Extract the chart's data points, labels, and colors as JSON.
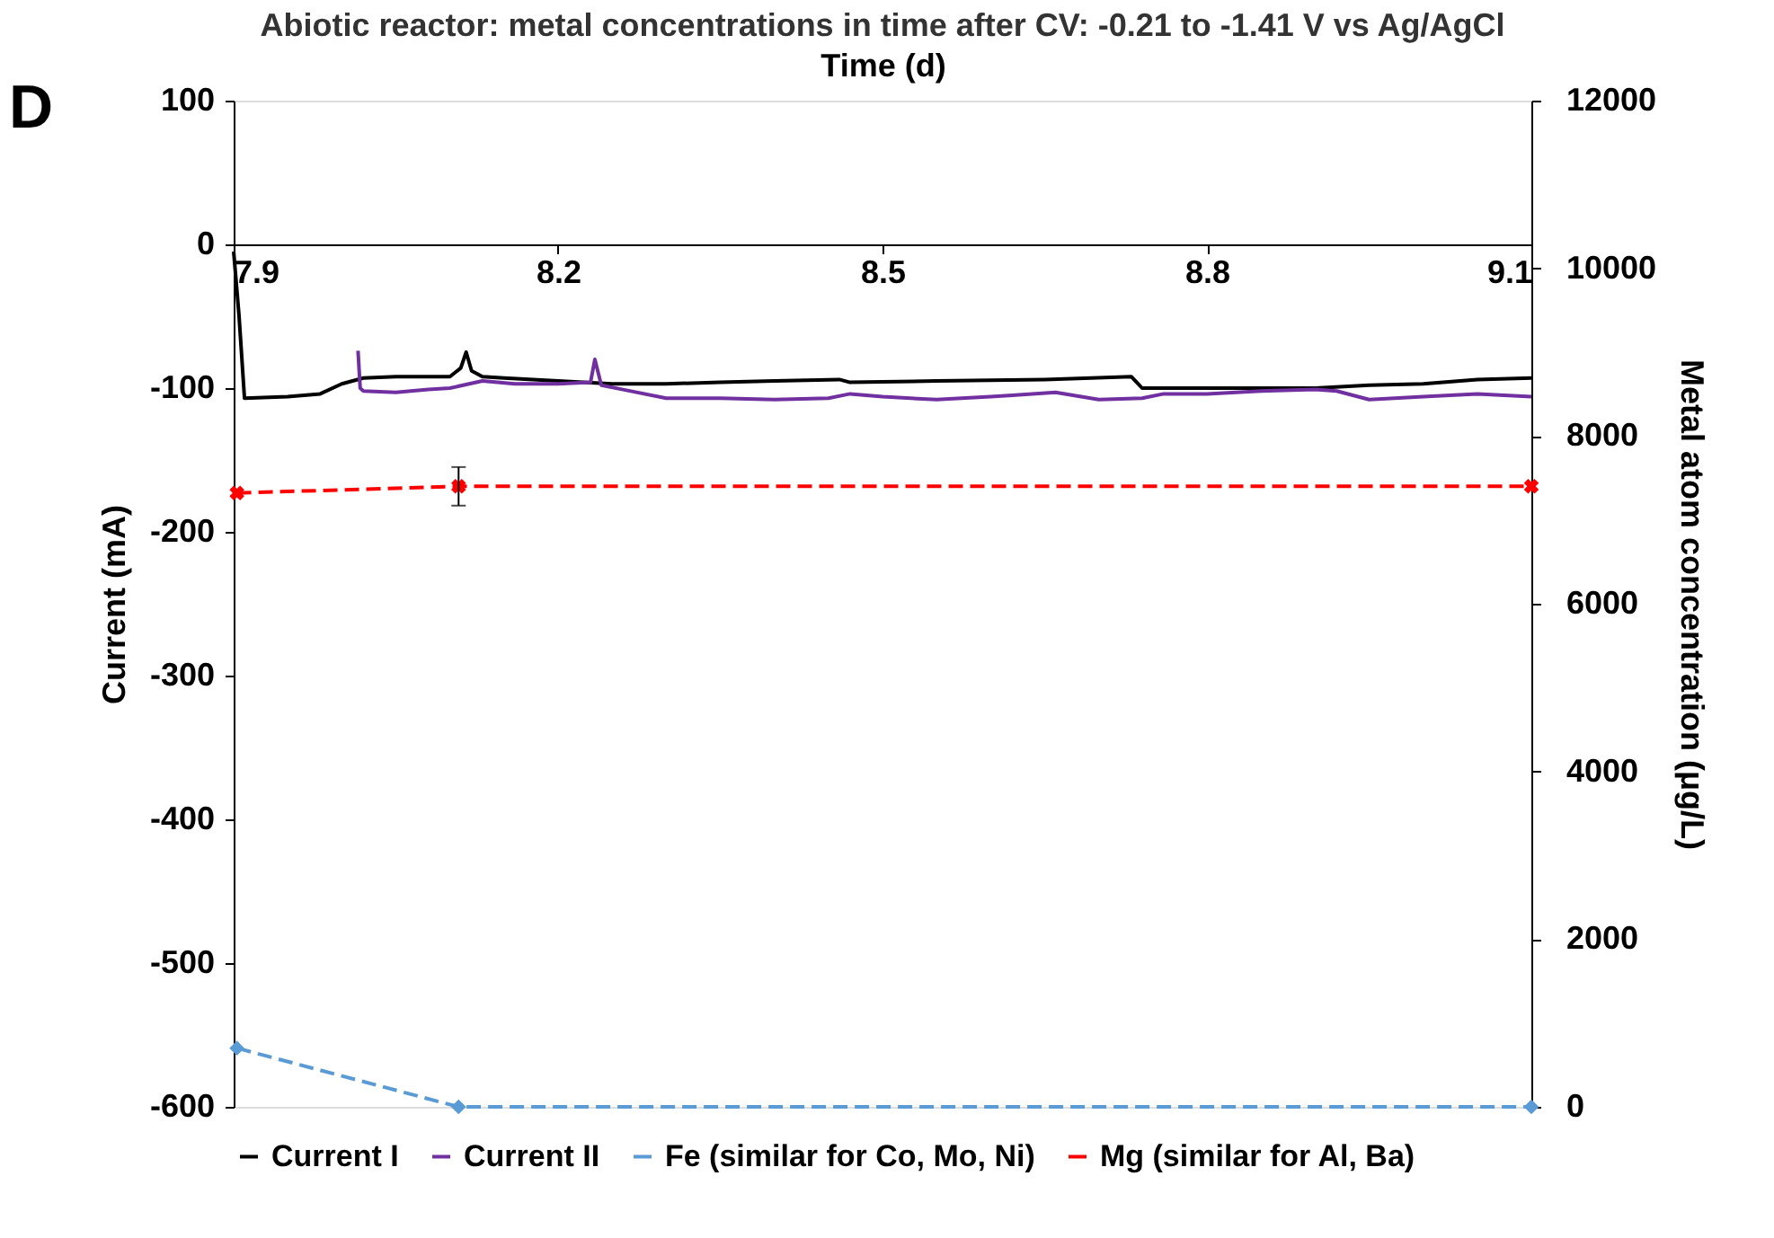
{
  "chart_data": {
    "type": "line",
    "title": "Abiotic reactor: metal concentrations in time after CV: -0.21 to -1.41 V vs Ag/AgCl",
    "xlabel": "Time (d)",
    "ylabel": "Current (mA)",
    "y2label": "Metal atom concentration (μg/L)",
    "annotations": [
      "D"
    ],
    "xlim": [
      7.9,
      9.1
    ],
    "xticks": [
      7.9,
      8.2,
      8.5,
      8.8,
      9.1
    ],
    "ylim": [
      -600,
      100
    ],
    "yticks": [
      -600,
      -500,
      -400,
      -300,
      -200,
      -100,
      0,
      100
    ],
    "y2lim": [
      0,
      12000
    ],
    "y2ticks": [
      0,
      2000,
      4000,
      6000,
      8000,
      10000,
      12000
    ],
    "grid": false,
    "legend": "bottom",
    "series": [
      {
        "name": "Current I",
        "color": "#000000",
        "line_style": "solid",
        "marker": "none",
        "x": [
          7.9,
          7.905,
          7.91,
          7.95,
          7.98,
          8.0,
          8.02,
          8.05,
          8.1,
          8.11,
          8.115,
          8.12,
          8.13,
          8.15,
          8.2,
          8.25,
          8.3,
          8.35,
          8.4,
          8.46,
          8.47,
          8.55,
          8.65,
          8.73,
          8.74,
          8.8,
          8.9,
          8.95,
          9.0,
          9.05,
          9.1
        ],
        "values": [
          -5,
          -50,
          -107,
          -106,
          -104,
          -97,
          -93,
          -92,
          -92,
          -86,
          -75,
          -88,
          -92,
          -93,
          -95,
          -97,
          -97,
          -96,
          -95,
          -94,
          -96,
          -95,
          -94,
          -92,
          -100,
          -100,
          -100,
          -98,
          -97,
          -94,
          -93
        ]
      },
      {
        "name": "Current II",
        "color": "#7030a0",
        "line_style": "solid",
        "marker": "none",
        "x": [
          8.015,
          8.017,
          8.02,
          8.05,
          8.08,
          8.1,
          8.13,
          8.16,
          8.2,
          8.23,
          8.234,
          8.24,
          8.26,
          8.3,
          8.35,
          8.4,
          8.45,
          8.47,
          8.5,
          8.55,
          8.6,
          8.62,
          8.66,
          8.7,
          8.74,
          8.76,
          8.8,
          8.85,
          8.9,
          8.92,
          8.95,
          9.0,
          9.05,
          9.1
        ],
        "values": [
          -74,
          -100,
          -102,
          -103,
          -101,
          -100,
          -95,
          -97,
          -97,
          -96,
          -80,
          -98,
          -101,
          -107,
          -107,
          -108,
          -107,
          -104,
          -106,
          -108,
          -106,
          -105,
          -103,
          -108,
          -107,
          -104,
          -104,
          -102,
          -101,
          -102,
          -108,
          -106,
          -104,
          -106
        ]
      },
      {
        "name": "Fe (similar for Co, Mo, Ni)",
        "color": "#5b9bd5",
        "axis": "y2",
        "line_style": "dashed",
        "marker": "diamond",
        "x": [
          7.903,
          8.108,
          9.1
        ],
        "values": [
          700,
          0,
          0
        ]
      },
      {
        "name": "Mg (similar for Al, Ba)",
        "color": "#ff0000",
        "axis": "y2",
        "line_style": "dashed",
        "marker": "cross",
        "x": [
          7.903,
          8.108,
          9.1
        ],
        "values": [
          7320,
          7400,
          7400
        ],
        "errors": [
          null,
          230,
          null
        ]
      }
    ]
  }
}
